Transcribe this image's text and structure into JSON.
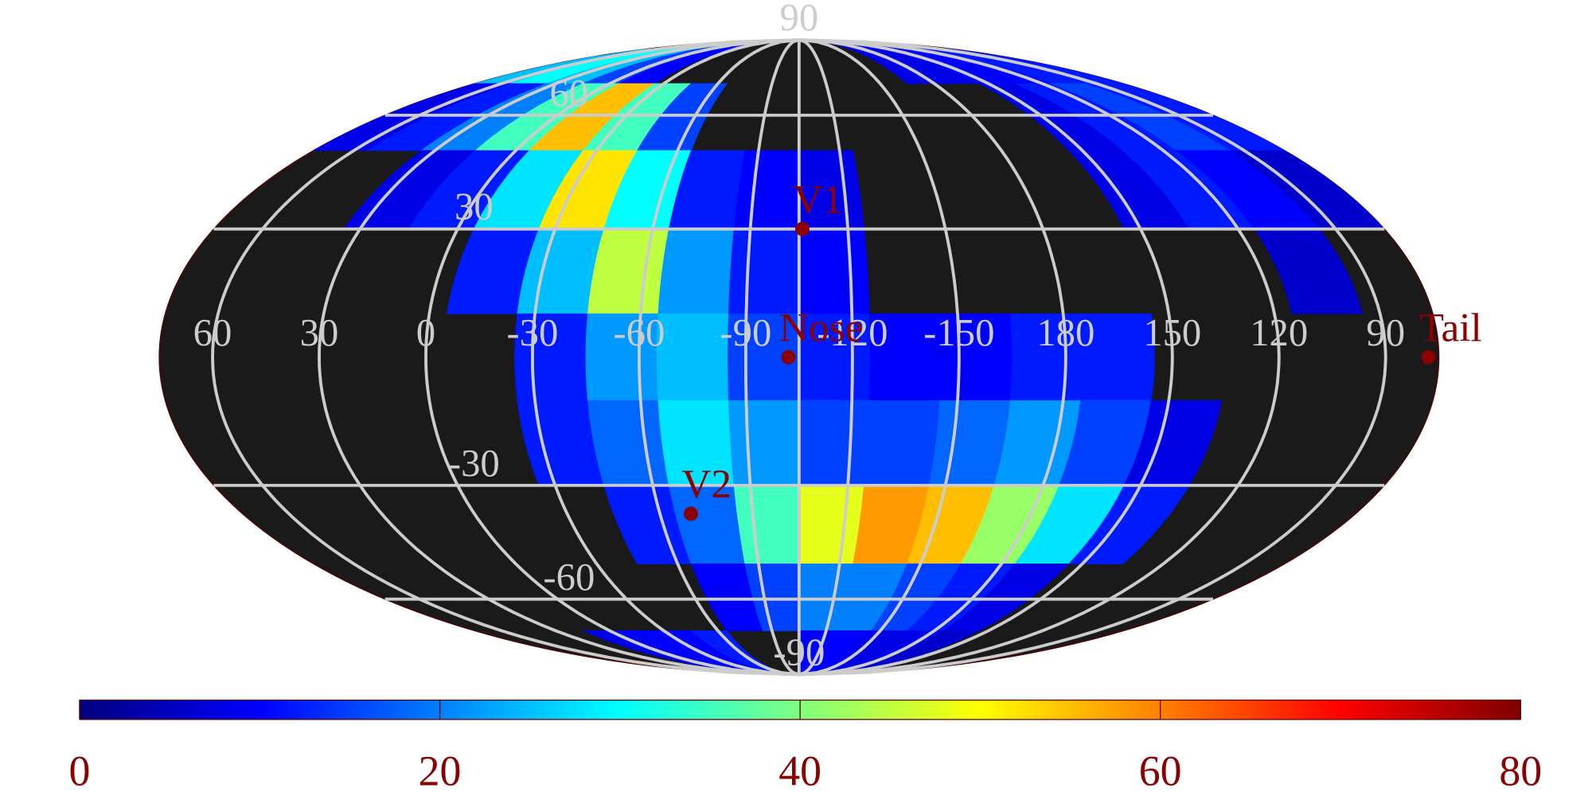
{
  "chart_data": {
    "type": "heatmap",
    "projection": "mollweide",
    "colormap": "jet",
    "background": "#1a1a1a",
    "grid": true,
    "grid_color": "#cccccc",
    "xlim": [
      75,
      -285
    ],
    "ylim": [
      -90,
      90
    ],
    "lat_ticks": [
      90,
      60,
      30,
      -30,
      -60,
      -90
    ],
    "lon_ticks": [
      60,
      30,
      0,
      -30,
      -60,
      -90,
      -120,
      -150,
      180,
      150,
      120,
      90
    ],
    "heatmap": {
      "lon_edges": [
        75,
        55,
        35,
        15,
        -5,
        -25,
        -45,
        -65,
        -85,
        -105,
        -125,
        -145,
        -165,
        -185,
        -205,
        -225,
        -245,
        -265,
        -285
      ],
      "lat_edges": [
        90,
        70,
        50,
        30,
        10,
        -10,
        -30,
        -50,
        -70,
        -90
      ],
      "values": [
        [
          25,
          30,
          25,
          15,
          10,
          null,
          null,
          null,
          null,
          null,
          null,
          null,
          8,
          8,
          10,
          10,
          12,
          12
        ],
        [
          8,
          12,
          20,
          35,
          55,
          35,
          15,
          null,
          null,
          null,
          null,
          null,
          null,
          null,
          8,
          12,
          15,
          12
        ],
        [
          null,
          null,
          8,
          12,
          28,
          52,
          30,
          12,
          10,
          8,
          null,
          null,
          null,
          null,
          8,
          12,
          10,
          6
        ],
        [
          null,
          null,
          null,
          null,
          12,
          25,
          45,
          22,
          12,
          10,
          null,
          null,
          null,
          null,
          null,
          null,
          6,
          null
        ],
        [
          null,
          null,
          null,
          null,
          null,
          12,
          22,
          25,
          15,
          12,
          10,
          10,
          12,
          12,
          null,
          null,
          null,
          null
        ],
        [
          null,
          null,
          null,
          null,
          null,
          12,
          18,
          28,
          22,
          15,
          15,
          18,
          22,
          15,
          8,
          null,
          null,
          null
        ],
        [
          null,
          null,
          null,
          null,
          null,
          null,
          12,
          18,
          35,
          48,
          58,
          55,
          42,
          28,
          12,
          null,
          null,
          null
        ],
        [
          null,
          null,
          null,
          null,
          null,
          null,
          null,
          10,
          15,
          20,
          20,
          15,
          12,
          8,
          null,
          null,
          null,
          null
        ],
        [
          null,
          null,
          null,
          8,
          10,
          10,
          12,
          null,
          null,
          10,
          10,
          8,
          8,
          6,
          null,
          null,
          null,
          null
        ]
      ]
    },
    "markers": [
      {
        "label": "V1",
        "lon": -106,
        "lat": 30,
        "color": "#8b0000"
      },
      {
        "label": "Nose",
        "lon": -102,
        "lat": 0,
        "color": "#8b0000"
      },
      {
        "label": "V2",
        "lon": -70,
        "lat": -37,
        "color": "#8b0000"
      },
      {
        "label": "Tail",
        "lon": 78,
        "lat": 0,
        "color": "#8b0000"
      }
    ],
    "colorbar": {
      "lim": [
        0,
        80
      ],
      "ticks": [
        0,
        20,
        40,
        60,
        80
      ],
      "label_color": "#8b0000"
    }
  }
}
